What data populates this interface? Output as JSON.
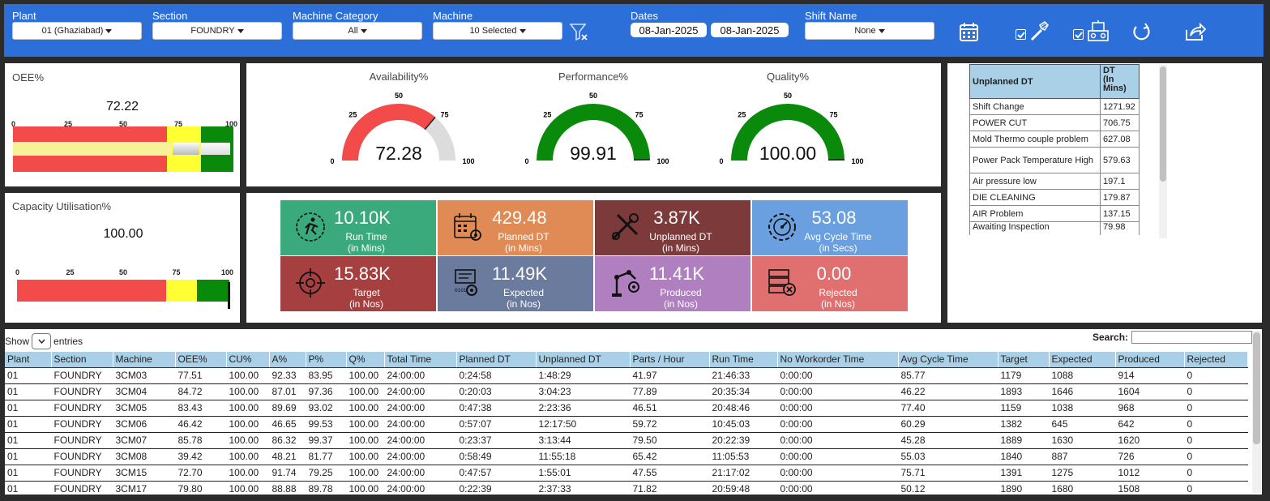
{
  "filters": {
    "plant": {
      "label": "Plant",
      "value": "01 (Ghaziabad)"
    },
    "section": {
      "label": "Section",
      "value": "FOUNDRY"
    },
    "machine_category": {
      "label": "Machine Category",
      "value": "All"
    },
    "machine": {
      "label": "Machine",
      "value": "10 Selected"
    },
    "dates": {
      "label": "Dates",
      "from": "08-Jan-2025",
      "to": "08-Jan-2025"
    },
    "shift": {
      "label": "Shift Name",
      "value": "None"
    }
  },
  "toolbar_icons": [
    "clear-filter-icon",
    "calendar-icon",
    "tool-icon",
    "machine-icon",
    "refresh-icon",
    "share-icon"
  ],
  "oee": {
    "label": "OEE%",
    "value": "72.22",
    "ticks": [
      "0",
      "25",
      "50",
      "75",
      "100"
    ],
    "level": 72.22
  },
  "capacity": {
    "label": "Capacity Utilisation%",
    "value": "100.00",
    "ticks": [
      "0",
      "25",
      "50",
      "75",
      "100"
    ],
    "level": 100
  },
  "gauges": [
    {
      "title": "Availability%",
      "value": "72.28",
      "level": 72.28,
      "color": "#f34a4a",
      "ticks": [
        "0",
        "25",
        "50",
        "75",
        "100"
      ]
    },
    {
      "title": "Performance%",
      "value": "99.91",
      "level": 99.91,
      "color": "#0a8a0a",
      "ticks": [
        "0",
        "25",
        "50",
        "75",
        "100"
      ]
    },
    {
      "title": "Quality%",
      "value": "100.00",
      "level": 100,
      "color": "#0a8a0a",
      "ticks": [
        "0",
        "25",
        "50",
        "75",
        "100"
      ]
    }
  ],
  "tiles": [
    {
      "value": "10.10K",
      "label1": "Run Time",
      "label2": "(in Mins)",
      "color": "#3aaa7c",
      "icon": "runner-icon"
    },
    {
      "value": "429.48",
      "label1": "Planned DT",
      "label2": "(in Mins)",
      "color": "#e08a55",
      "icon": "calendar-gear-icon"
    },
    {
      "value": "3.87K",
      "label1": "Unplanned DT",
      "label2": "(in Mins)",
      "color": "#7d3a3a",
      "icon": "tools-icon"
    },
    {
      "value": "53.08",
      "label1": "Avg Cycle Time",
      "label2": "(in Secs)",
      "color": "#6aa0e0",
      "icon": "gear-gauge-icon"
    },
    {
      "value": "15.83K",
      "label1": "Target",
      "label2": "(in Nos)",
      "color": "#a64040",
      "icon": "target-icon"
    },
    {
      "value": "11.49K",
      "label1": "Expected",
      "label2": "(in Nos)",
      "color": "#6a7b9e",
      "icon": "document-gear-icon"
    },
    {
      "value": "11.41K",
      "label1": "Produced",
      "label2": "(in Nos)",
      "color": "#b07fbf",
      "icon": "robot-arm-icon"
    },
    {
      "value": "0.00",
      "label1": "Rejected",
      "label2": "(in Nos)",
      "color": "#e07070",
      "icon": "rejected-icon"
    }
  ],
  "unplanned_dt": {
    "headers": [
      "Unplanned DT",
      "DT (In Mins)"
    ],
    "header_dt_lines": [
      "DT",
      "(In",
      "Mins)"
    ],
    "rows": [
      [
        "Shift Change",
        "1271.92"
      ],
      [
        "POWER CUT",
        "706.75"
      ],
      [
        "Mold Thermo couple problem",
        "627.08"
      ],
      [
        "Power Pack Temperature High",
        "579.63"
      ],
      [
        "Air pressure low",
        "197.1"
      ],
      [
        "DIE CLEANING",
        "179.87"
      ],
      [
        "AIR Problem",
        "137.15"
      ],
      [
        "Awaiting Inspection",
        "79.98"
      ]
    ]
  },
  "table": {
    "show_label": "Show",
    "entries_label": "entries",
    "search_label": "Search:",
    "headers": [
      "Plant",
      "Section",
      "Machine",
      "OEE%",
      "CU%",
      "A%",
      "P%",
      "Q%",
      "Total Time",
      "Planned DT",
      "Unplanned DT",
      "Parts / Hour",
      "Run Time",
      "No Workorder Time",
      "Avg Cycle Time",
      "Target",
      "Expected",
      "Produced",
      "Rejected"
    ],
    "rows": [
      [
        "01",
        "FOUNDRY",
        "3CM03",
        "77.51",
        "100.00",
        "92.33",
        "83.95",
        "100.00",
        "24:00:00",
        "0:24:58",
        "1:48:29",
        "41.97",
        "21:46:33",
        "0:00:00",
        "85.77",
        "1179",
        "1088",
        "914",
        "0"
      ],
      [
        "01",
        "FOUNDRY",
        "3CM04",
        "84.72",
        "100.00",
        "87.01",
        "97.36",
        "100.00",
        "24:00:00",
        "0:20:03",
        "3:04:23",
        "77.89",
        "20:35:34",
        "0:00:00",
        "46.22",
        "1893",
        "1646",
        "1604",
        "0"
      ],
      [
        "01",
        "FOUNDRY",
        "3CM05",
        "83.43",
        "100.00",
        "89.69",
        "93.02",
        "100.00",
        "24:00:00",
        "0:47:38",
        "2:23:36",
        "46.51",
        "20:48:46",
        "0:00:00",
        "77.40",
        "1159",
        "1038",
        "968",
        "0"
      ],
      [
        "01",
        "FOUNDRY",
        "3CM06",
        "46.42",
        "100.00",
        "46.65",
        "99.53",
        "100.00",
        "24:00:00",
        "0:57:07",
        "12:17:50",
        "59.72",
        "10:45:03",
        "0:00:00",
        "60.29",
        "1382",
        "645",
        "642",
        "0"
      ],
      [
        "01",
        "FOUNDRY",
        "3CM07",
        "85.78",
        "100.00",
        "86.32",
        "99.37",
        "100.00",
        "24:00:00",
        "0:23:37",
        "3:13:44",
        "79.50",
        "20:22:39",
        "0:00:00",
        "45.28",
        "1889",
        "1630",
        "1620",
        "0"
      ],
      [
        "01",
        "FOUNDRY",
        "3CM08",
        "39.42",
        "100.00",
        "48.21",
        "81.77",
        "100.00",
        "24:00:00",
        "0:58:49",
        "11:55:18",
        "65.42",
        "11:05:53",
        "0:00:00",
        "55.03",
        "1840",
        "887",
        "726",
        "0"
      ],
      [
        "01",
        "FOUNDRY",
        "3CM15",
        "72.70",
        "100.00",
        "91.74",
        "79.25",
        "100.00",
        "24:00:00",
        "0:47:57",
        "1:55:01",
        "47.55",
        "21:17:02",
        "0:00:00",
        "75.71",
        "1391",
        "1275",
        "1012",
        "0"
      ],
      [
        "01",
        "FOUNDRY",
        "3CM17",
        "79.80",
        "100.00",
        "88.88",
        "89.78",
        "100.00",
        "24:00:00",
        "0:22:39",
        "2:37:33",
        "71.82",
        "20:59:48",
        "0:00:00",
        "50.12",
        "1890",
        "1680",
        "1508",
        "0"
      ]
    ]
  }
}
